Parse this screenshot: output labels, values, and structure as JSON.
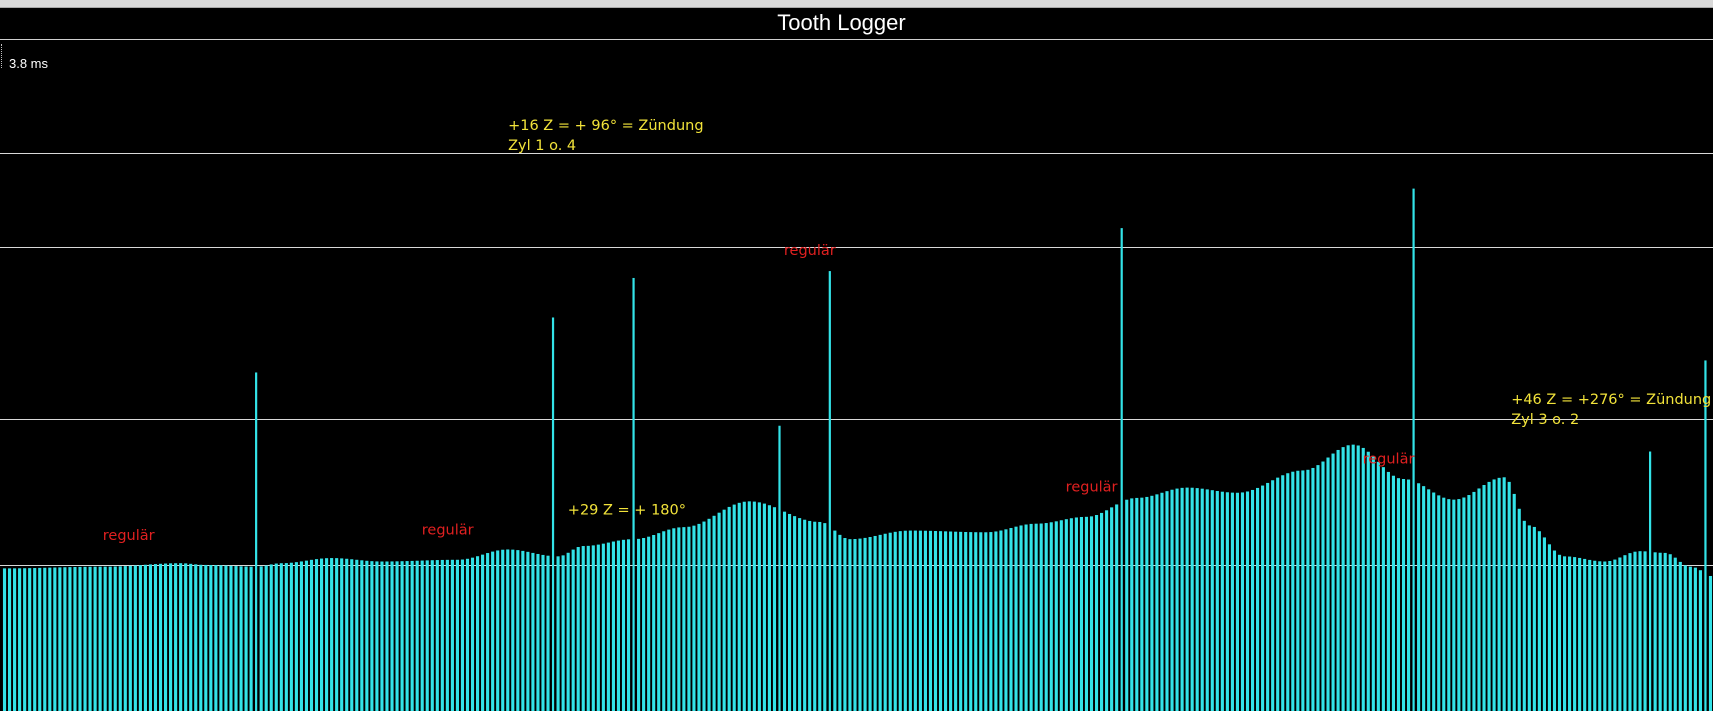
{
  "window": {
    "title": "Tooth Logger"
  },
  "readout": {
    "value": "3.8 ms"
  },
  "colors": {
    "background": "#000000",
    "bars": "#33e3e8",
    "gridlines": "#d9d9d9",
    "annotation_regular": "#e02020",
    "annotation_event": "#f2e33a"
  },
  "chart_data": {
    "type": "bar",
    "title": "Tooth Logger",
    "xlabel": "",
    "ylabel": "",
    "unit": "ms",
    "max_label": "3.8 ms",
    "ylim": [
      0,
      3.8
    ],
    "grid": true,
    "gridlines_ms": [
      0.85,
      1.7,
      2.7,
      3.25
    ],
    "n_teeth": 340,
    "baseline_profile": [
      [
        0,
        0.83
      ],
      [
        20,
        0.84
      ],
      [
        35,
        0.86
      ],
      [
        40,
        0.85
      ],
      [
        50,
        0.84
      ],
      [
        55,
        0.86
      ],
      [
        65,
        0.89
      ],
      [
        75,
        0.87
      ],
      [
        90,
        0.88
      ],
      [
        100,
        0.94
      ],
      [
        110,
        0.9
      ],
      [
        115,
        0.96
      ],
      [
        125,
        1.0
      ],
      [
        135,
        1.07
      ],
      [
        148,
        1.22
      ],
      [
        162,
        1.1
      ],
      [
        168,
        1.0
      ],
      [
        180,
        1.05
      ],
      [
        195,
        1.04
      ],
      [
        205,
        1.09
      ],
      [
        215,
        1.13
      ],
      [
        225,
        1.24
      ],
      [
        235,
        1.3
      ],
      [
        245,
        1.27
      ],
      [
        258,
        1.4
      ],
      [
        268,
        1.55
      ],
      [
        278,
        1.35
      ],
      [
        288,
        1.23
      ],
      [
        298,
        1.36
      ],
      [
        303,
        1.08
      ],
      [
        310,
        0.9
      ],
      [
        318,
        0.87
      ],
      [
        325,
        0.93
      ],
      [
        330,
        0.92
      ],
      [
        335,
        0.84
      ],
      [
        340,
        0.78
      ]
    ],
    "spikes": [
      {
        "tooth": 50,
        "value": 1.97
      },
      {
        "tooth": 109,
        "value": 2.29
      },
      {
        "tooth": 125,
        "value": 2.52
      },
      {
        "tooth": 154,
        "value": 1.66
      },
      {
        "tooth": 164,
        "value": 2.56
      },
      {
        "tooth": 222,
        "value": 2.81
      },
      {
        "tooth": 280,
        "value": 3.04
      },
      {
        "tooth": 327,
        "value": 1.51
      },
      {
        "tooth": 338,
        "value": 2.04
      }
    ],
    "annotations": [
      {
        "kind": "regular",
        "lines": [
          "regulär"
        ],
        "tooth": 37
      },
      {
        "kind": "regular",
        "lines": [
          "regulär"
        ],
        "tooth": 98
      },
      {
        "kind": "event",
        "lines": [
          "+16 Z = + 96° = Zündung",
          "Zyl 1 o. 4"
        ],
        "tooth": 112
      },
      {
        "kind": "regular",
        "lines": [
          "regulär"
        ],
        "tooth": 164
      },
      {
        "kind": "event",
        "lines": [
          "+29 Z = + 180°"
        ],
        "tooth": 133
      },
      {
        "kind": "regular",
        "lines": [
          "regulär"
        ],
        "tooth": 220
      },
      {
        "kind": "regular",
        "lines": [
          "regulär"
        ],
        "tooth": 279
      },
      {
        "kind": "event",
        "lines": [
          "+46 Z = +276° = Zündung",
          "Zyl 3 o. 2"
        ],
        "tooth": 299
      }
    ]
  }
}
